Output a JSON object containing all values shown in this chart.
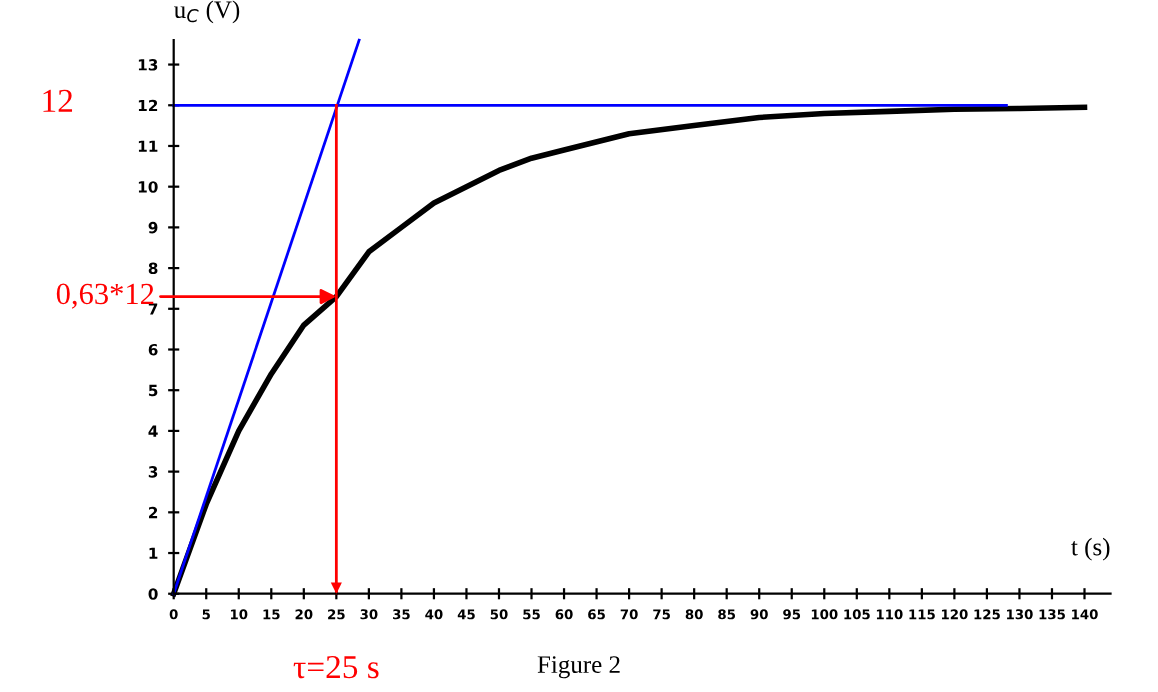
{
  "chart_data": {
    "type": "line",
    "xlabel": "t (s)",
    "ylabel": "u$_{C}$ (V)",
    "x": [
      0,
      5,
      10,
      15,
      20,
      25,
      30,
      35,
      40,
      45,
      50,
      55,
      60,
      70,
      80,
      90,
      100,
      110,
      120,
      130,
      140
    ],
    "series": [
      {
        "color": "#000000",
        "values": [
          0,
          2.2,
          4.0,
          5.4,
          6.6,
          7.3,
          8.4,
          9.0,
          9.6,
          10.0,
          10.4,
          10.7,
          10.9,
          11.3,
          11.5,
          11.7,
          11.8,
          11.85,
          11.9,
          11.92,
          11.95
        ]
      },
      {
        "color": "#0000ff",
        "x": [
          0,
          28.5
        ],
        "values": [
          0,
          13.6
        ]
      },
      {
        "color": "#0000ff",
        "x": [
          0,
          128
        ],
        "values": [
          12,
          12
        ]
      },
      {
        "color": "#ff0000",
        "x": [
          25,
          25
        ],
        "values": [
          12,
          0
        ]
      }
    ],
    "xlim": [
      0,
      144
    ],
    "ylim": [
      0,
      13.6
    ],
    "xticks": [
      0,
      5,
      10,
      15,
      20,
      25,
      30,
      35,
      40,
      45,
      50,
      55,
      60,
      65,
      70,
      75,
      80,
      85,
      90,
      95,
      100,
      105,
      110,
      115,
      120,
      125,
      130,
      135,
      140
    ],
    "yticks": [
      0,
      1,
      2,
      3,
      4,
      5,
      6,
      7,
      8,
      9,
      10,
      11,
      12,
      13
    ],
    "grid": false,
    "legend": false,
    "annotations": [
      "12",
      {
        "text": "0,63*12",
        "x": 25,
        "y": 7.3
      },
      {
        "text": "τ=25 s",
        "x": 25,
        "y": 0
      },
      "Figure 2"
    ]
  }
}
